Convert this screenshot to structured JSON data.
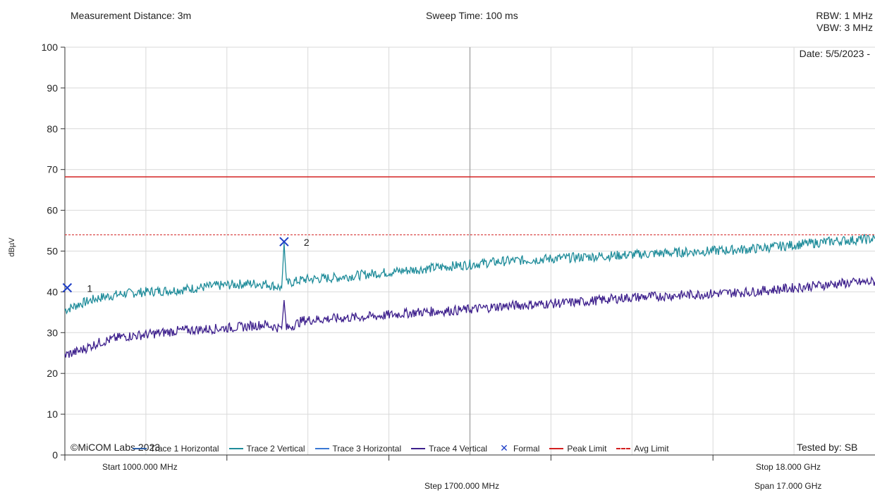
{
  "header": {
    "measurement_distance": "Measurement Distance: 3m",
    "sweep_time": "Sweep Time: 100 ms",
    "rbw": "RBW: 1 MHz",
    "vbw": "VBW: 3 MHz",
    "date": "Date: 5/5/2023 -"
  },
  "footer": {
    "start": "Start 1000.000 MHz",
    "step": "Step 1700.000 MHz",
    "stop": "Stop 18.000 GHz",
    "span": "Span 17.000 GHz",
    "copyright": "©MiCOM Labs 2023",
    "tested_by": "Tested by: SB"
  },
  "colors": {
    "trace1": "#2e5fa8",
    "trace2": "#1f8c9a",
    "trace3": "#3a78d4",
    "trace4": "#3d1f8c",
    "formal": "#1f3fc7",
    "peak_limit": "#d32020",
    "avg_limit": "#d32020",
    "grid": "#d9d9d9"
  },
  "legend": [
    {
      "label": "Trace 1 Horizontal",
      "color": "#2e5fa8",
      "kind": "line"
    },
    {
      "label": "Trace 2 Vertical",
      "color": "#1f8c9a",
      "kind": "line"
    },
    {
      "label": "Trace 3 Horizontal",
      "color": "#3a78d4",
      "kind": "line"
    },
    {
      "label": "Trace 4 Vertical",
      "color": "#3d1f8c",
      "kind": "line"
    },
    {
      "label": "Formal",
      "color": "#1f3fc7",
      "kind": "x"
    },
    {
      "label": "Peak Limit",
      "color": "#d32020",
      "kind": "line"
    },
    {
      "label": "Avg Limit",
      "color": "#d32020",
      "kind": "dash"
    }
  ],
  "chart_data": {
    "type": "line",
    "ylabel": "dBµV",
    "xlabel": "",
    "xlim_mhz": [
      1000,
      18000
    ],
    "ylim": [
      0,
      100
    ],
    "yticks": [
      0,
      10,
      20,
      30,
      40,
      50,
      60,
      70,
      80,
      90,
      100
    ],
    "grid": true,
    "legend_position": "bottom",
    "limits": {
      "peak_limit": 68.2,
      "avg_limit": 54.0
    },
    "series": [
      {
        "name": "Trace 2 Vertical",
        "x_mhz": [
          1000,
          1300,
          1700,
          2200,
          2700,
          3400,
          4200,
          4800,
          5200,
          5550,
          5600,
          5650,
          6000,
          6700,
          7500,
          8400,
          9300,
          10200,
          11000,
          11800,
          12700,
          13600,
          14500,
          15400,
          16300,
          17200,
          18000
        ],
        "y": [
          35.5,
          37,
          38.5,
          39.5,
          40,
          40.5,
          41.5,
          42,
          42,
          41,
          52,
          42,
          43,
          43.5,
          44.5,
          45.5,
          46.5,
          47.5,
          48,
          48.5,
          49,
          49.5,
          50,
          50.5,
          51.5,
          52.5,
          53
        ]
      },
      {
        "name": "Trace 4 Vertical",
        "x_mhz": [
          1000,
          1300,
          1700,
          2200,
          2700,
          3400,
          4200,
          4800,
          5200,
          5550,
          5600,
          5650,
          6000,
          6700,
          7500,
          8400,
          9300,
          10200,
          11000,
          11800,
          12700,
          13600,
          14500,
          15400,
          16300,
          17200,
          18000
        ],
        "y": [
          24.5,
          25.5,
          27.5,
          29,
          29.5,
          30.5,
          31,
          31.5,
          32,
          31,
          38,
          31,
          33,
          33.5,
          34,
          35,
          35.5,
          36.5,
          37,
          37.5,
          38.5,
          39,
          39.5,
          40,
          41,
          42,
          42.5
        ]
      }
    ],
    "markers": [
      {
        "label": "1",
        "x_mhz": 1050,
        "y": 41.0
      },
      {
        "label": "2",
        "x_mhz": 5600,
        "y": 52.3
      }
    ]
  }
}
